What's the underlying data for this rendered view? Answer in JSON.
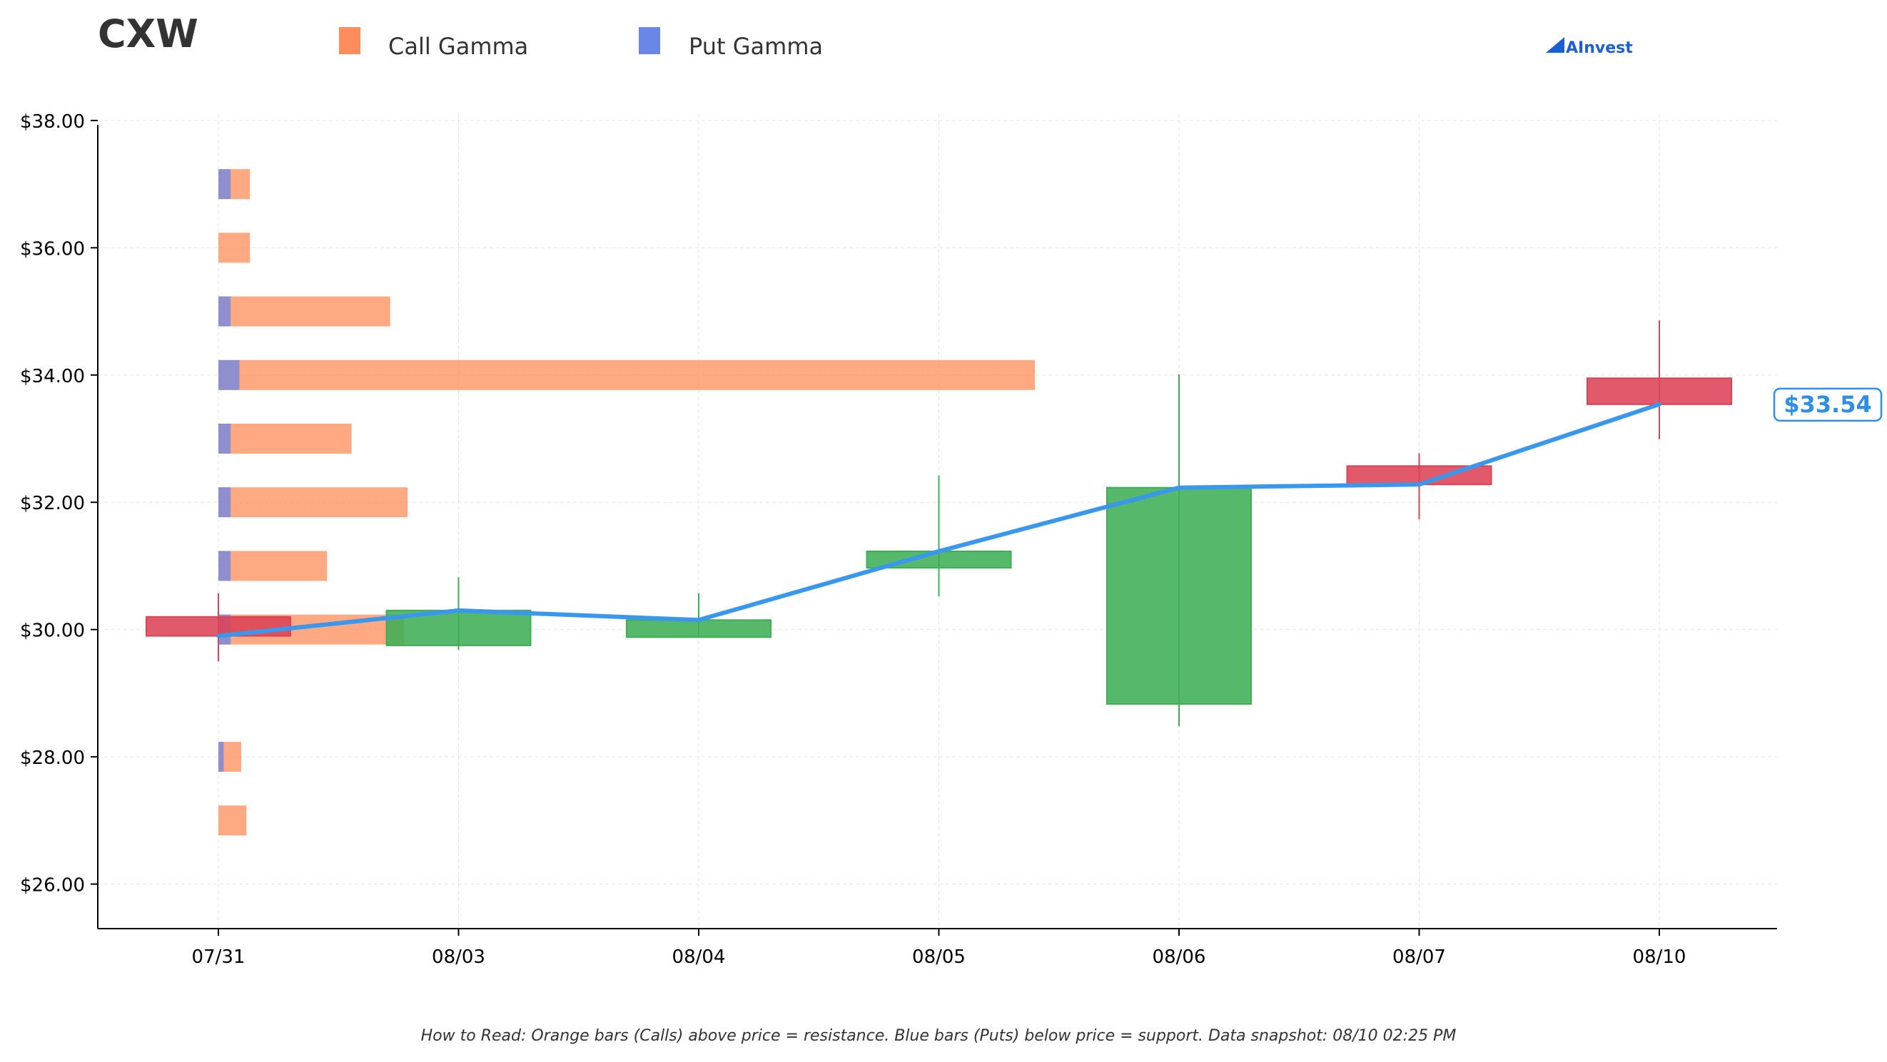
{
  "chart_data": {
    "type": "candlestick",
    "title": "CXW",
    "legend": {
      "placement": "top-left",
      "items": [
        {
          "label": "Call Gamma",
          "color": "#ff8c5a"
        },
        {
          "label": "Put Gamma",
          "color": "#6a87e8"
        }
      ]
    },
    "brand": "AInvest",
    "x": [
      "07/31",
      "08/03",
      "08/04",
      "08/05",
      "08/06",
      "08/07",
      "08/10"
    ],
    "ylim": [
      25.3,
      38.1
    ],
    "yticks": [
      26,
      28,
      30,
      32,
      34,
      36,
      38
    ],
    "ytick_labels": [
      "$26.00",
      "$28.00",
      "$30.00",
      "$32.00",
      "$34.00",
      "$36.00",
      "$38.00"
    ],
    "grid": true,
    "candles": [
      {
        "date": "07/31",
        "open": 30.2,
        "high": 30.57,
        "low": 29.5,
        "close": 29.9
      },
      {
        "date": "08/03",
        "open": 29.75,
        "high": 30.82,
        "low": 29.68,
        "close": 30.3
      },
      {
        "date": "08/04",
        "open": 29.88,
        "high": 30.57,
        "low": 29.88,
        "close": 30.15
      },
      {
        "date": "08/05",
        "open": 30.97,
        "high": 32.42,
        "low": 30.52,
        "close": 31.23
      },
      {
        "date": "08/06",
        "open": 28.83,
        "high": 34.01,
        "low": 28.48,
        "close": 32.23
      },
      {
        "date": "08/07",
        "open": 32.57,
        "high": 32.77,
        "low": 31.73,
        "close": 32.28
      },
      {
        "date": "08/10",
        "open": 33.95,
        "high": 34.86,
        "low": 32.99,
        "close": 33.54
      }
    ],
    "gamma": [
      {
        "strike": 37,
        "call": 0.9,
        "put": 0.35
      },
      {
        "strike": 36,
        "call": 0.9,
        "put": 0
      },
      {
        "strike": 35,
        "call": 4.9,
        "put": 0.35
      },
      {
        "strike": 34,
        "call": 23.3,
        "put": 0.6
      },
      {
        "strike": 33,
        "call": 3.8,
        "put": 0.35
      },
      {
        "strike": 32,
        "call": 5.4,
        "put": 0.35
      },
      {
        "strike": 31,
        "call": 3.1,
        "put": 0.35
      },
      {
        "strike": 30,
        "call": 5.3,
        "put": 0.35
      },
      {
        "strike": 28,
        "call": 0.65,
        "put": 0.15
      },
      {
        "strike": 27,
        "call": 0.8,
        "put": 0
      }
    ],
    "last_price_label": "$33.54",
    "colors": {
      "up": "#3fae55",
      "down": "#dc4356",
      "close_line": "#3a97ee",
      "call": "#ff8c5a",
      "put": "#6a87e8",
      "label": "#2f8fe6",
      "brand": "#1a5fd6"
    },
    "footnote": "How to Read: Orange bars (Calls) above price = resistance. Blue bars (Puts) below price = support. Data snapshot: 08/10 02:25 PM"
  }
}
